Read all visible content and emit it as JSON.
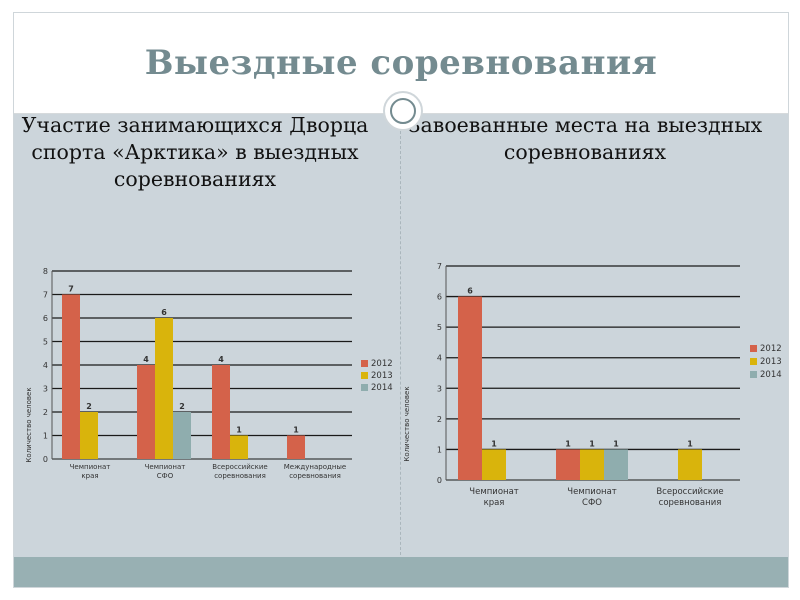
{
  "title": "Выездные соревнования",
  "left_subtitle": "Участие занимающихся Дворца спорта «Арктика» в выездных соревнованиях",
  "right_subtitle": "Завоеванные места на выездных соревнованиях",
  "colors": {
    "2012": "#d4624a",
    "2013": "#d9b40c",
    "2014": "#8fadae"
  },
  "chart_data": [
    {
      "type": "bar",
      "categories": [
        "Чемпионат края",
        "Чемпионат СФО",
        "Всероссийские соревнования",
        "Международные соревнования"
      ],
      "series": [
        {
          "name": "2012",
          "values": [
            7,
            4,
            4,
            1
          ]
        },
        {
          "name": "2013",
          "values": [
            2,
            6,
            1,
            null
          ]
        },
        {
          "name": "2014",
          "values": [
            null,
            2,
            null,
            null
          ]
        }
      ],
      "ylabel": "Количество человек",
      "ylim": [
        0,
        8
      ],
      "yticks": [
        "0",
        "1",
        "2",
        "3",
        "4",
        "5",
        "6",
        "7",
        "8"
      ],
      "legend": "right",
      "grid": true
    },
    {
      "type": "bar",
      "categories": [
        "Чемпионат края",
        "Чемпионат СФО",
        "Всероссийские соревнования"
      ],
      "series": [
        {
          "name": "2012",
          "values": [
            6,
            1,
            null
          ]
        },
        {
          "name": "2013",
          "values": [
            1,
            1,
            1
          ]
        },
        {
          "name": "2014",
          "values": [
            null,
            1,
            null
          ]
        }
      ],
      "ylabel": "Количество человек",
      "ylim": [
        0,
        7
      ],
      "yticks": [
        "0",
        "1",
        "2",
        "3",
        "4",
        "5",
        "6",
        "7"
      ],
      "legend": "right",
      "grid": true
    }
  ]
}
